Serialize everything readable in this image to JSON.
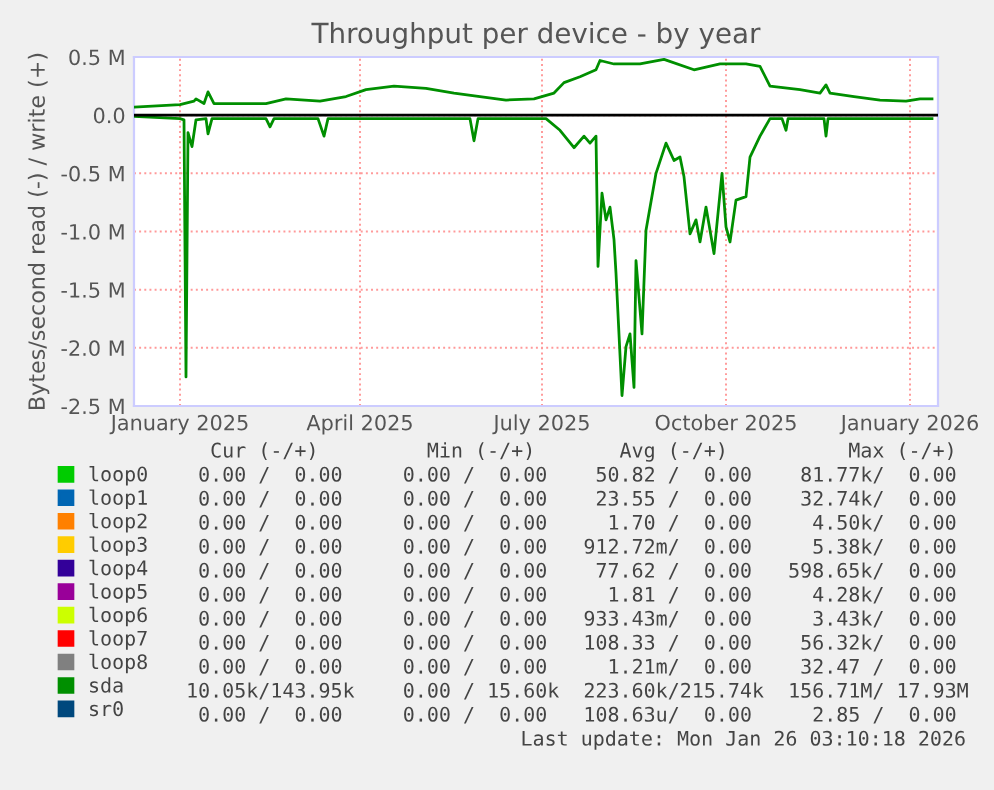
{
  "chart_data": {
    "type": "line",
    "title": "Throughput per device - by year",
    "ylabel": "Bytes/second read (-) / write (+)",
    "xlim": [
      "2024-12-23",
      "2026-01-29"
    ],
    "xticks": [
      {
        "value": "2025-01-15",
        "label": "January 2025"
      },
      {
        "value": "2025-04-15",
        "label": "April 2025"
      },
      {
        "value": "2025-07-15",
        "label": "July 2025"
      },
      {
        "value": "2025-10-15",
        "label": "October 2025"
      },
      {
        "value": "2026-01-15",
        "label": "January 2026"
      }
    ],
    "ylim": [
      -2.5,
      0.5
    ],
    "yticks": [
      {
        "value": 0.5,
        "label": "0.5 M"
      },
      {
        "value": 0.0,
        "label": "0.0"
      },
      {
        "value": -0.5,
        "label": "-0.5 M"
      },
      {
        "value": -1.0,
        "label": "-1.0 M"
      },
      {
        "value": -1.5,
        "label": "-1.5 M"
      },
      {
        "value": -2.0,
        "label": "-2.0 M"
      },
      {
        "value": -2.5,
        "label": "-2.5 M"
      }
    ],
    "grid": true,
    "legend": "bottom",
    "marker": "none",
    "line_style": "solid",
    "ref_lines": [
      {
        "axis": "y",
        "value": 0,
        "color": "#000000"
      }
    ],
    "series": [
      {
        "name": "loop0",
        "color": "#00cc00"
      },
      {
        "name": "loop1",
        "color": "#0066b3"
      },
      {
        "name": "loop2",
        "color": "#ff8000"
      },
      {
        "name": "loop3",
        "color": "#ffcc00"
      },
      {
        "name": "loop4",
        "color": "#330099"
      },
      {
        "name": "loop5",
        "color": "#990099"
      },
      {
        "name": "loop6",
        "color": "#ccff00"
      },
      {
        "name": "loop7",
        "color": "#ff0000"
      },
      {
        "name": "loop8",
        "color": "#808080"
      },
      {
        "name": "sda",
        "color": "#008f00",
        "x": [
          "2024-12-23",
          "2025-01-15",
          "2025-01-17",
          "2025-01-18",
          "2025-01-19",
          "2025-01-21",
          "2025-01-23",
          "2025-01-28",
          "2025-01-29",
          "2025-01-31",
          "2025-02-27",
          "2025-03-01",
          "2025-03-03",
          "2025-03-25",
          "2025-03-28",
          "2025-03-30",
          "2025-06-09",
          "2025-06-11",
          "2025-06-13",
          "2025-07-17",
          "2025-07-24",
          "2025-07-31",
          "2025-08-05",
          "2025-08-08",
          "2025-08-11",
          "2025-08-12",
          "2025-08-14",
          "2025-08-16",
          "2025-08-18",
          "2025-08-20",
          "2025-08-21",
          "2025-08-24",
          "2025-08-26",
          "2025-08-28",
          "2025-08-30",
          "2025-08-31",
          "2025-09-03",
          "2025-09-05",
          "2025-09-10",
          "2025-09-15",
          "2025-09-19",
          "2025-09-22",
          "2025-09-24",
          "2025-09-27",
          "2025-09-30",
          "2025-10-02",
          "2025-10-05",
          "2025-10-09",
          "2025-10-13",
          "2025-10-15",
          "2025-10-17",
          "2025-10-20",
          "2025-10-25",
          "2025-10-27",
          "2025-11-01",
          "2025-11-06",
          "2025-11-12",
          "2025-11-14",
          "2025-11-15",
          "2025-12-03",
          "2025-12-04",
          "2025-12-05",
          "2026-01-26"
        ],
        "values": [
          -0.01,
          -0.03,
          -0.04,
          -2.25,
          -0.15,
          -0.27,
          -0.04,
          -0.03,
          -0.16,
          -0.03,
          -0.03,
          -0.1,
          -0.03,
          -0.03,
          -0.18,
          -0.03,
          -0.03,
          -0.22,
          -0.03,
          -0.03,
          -0.13,
          -0.28,
          -0.18,
          -0.24,
          -0.18,
          -1.3,
          -0.67,
          -0.9,
          -0.79,
          -1.07,
          -1.36,
          -2.41,
          -1.99,
          -1.88,
          -2.34,
          -1.25,
          -1.88,
          -0.99,
          -0.5,
          -0.24,
          -0.39,
          -0.36,
          -0.53,
          -1.02,
          -0.9,
          -1.09,
          -0.79,
          -1.19,
          -0.5,
          -0.96,
          -1.09,
          -0.73,
          -0.7,
          -0.36,
          -0.18,
          -0.03,
          -0.03,
          -0.13,
          -0.03,
          -0.03,
          -0.18,
          -0.03,
          -0.03
        ]
      },
      {
        "name": "sr0",
        "color": "#00487d"
      },
      {
        "color": "#008f00",
        "x": [
          "2024-12-23",
          "2025-01-15",
          "2025-01-22",
          "2025-01-23",
          "2025-01-27",
          "2025-01-29",
          "2025-02-01",
          "2025-02-27",
          "2025-03-09",
          "2025-03-26",
          "2025-04-08",
          "2025-04-18",
          "2025-05-02",
          "2025-05-18",
          "2025-06-01",
          "2025-06-14",
          "2025-06-27",
          "2025-07-11",
          "2025-07-21",
          "2025-07-26",
          "2025-08-03",
          "2025-08-11",
          "2025-08-13",
          "2025-08-20",
          "2025-09-02",
          "2025-09-14",
          "2025-09-29",
          "2025-10-12",
          "2025-10-25",
          "2025-11-01",
          "2025-11-06",
          "2025-11-21",
          "2025-12-01",
          "2025-12-04",
          "2025-12-06",
          "2025-12-18",
          "2025-12-31",
          "2026-01-13",
          "2026-01-20",
          "2026-01-26"
        ],
        "values": [
          0.07,
          0.09,
          0.12,
          0.14,
          0.1,
          0.2,
          0.1,
          0.1,
          0.14,
          0.12,
          0.16,
          0.22,
          0.25,
          0.23,
          0.19,
          0.16,
          0.13,
          0.14,
          0.19,
          0.28,
          0.33,
          0.39,
          0.47,
          0.44,
          0.44,
          0.48,
          0.39,
          0.44,
          0.44,
          0.42,
          0.25,
          0.22,
          0.19,
          0.26,
          0.19,
          0.16,
          0.13,
          0.12,
          0.14,
          0.14
        ]
      }
    ],
    "annotations": [
      "   Cur (-/+)         Min (-/+)       Avg (-/+)          Max (-/+)",
      "  0.00 /  0.00     0.00 /  0.00    50.82 /  0.00    81.77k/  0.00",
      "  0.00 /  0.00     0.00 /  0.00    23.55 /  0.00    32.74k/  0.00",
      "  0.00 /  0.00     0.00 /  0.00     1.70 /  0.00     4.50k/  0.00",
      "  0.00 /  0.00     0.00 /  0.00   912.72m/  0.00     5.38k/  0.00",
      "  0.00 /  0.00     0.00 /  0.00    77.62 /  0.00   598.65k/  0.00",
      "  0.00 /  0.00     0.00 /  0.00     1.81 /  0.00     4.28k/  0.00",
      "  0.00 /  0.00     0.00 /  0.00   933.43m/  0.00     3.43k/  0.00",
      "  0.00 /  0.00     0.00 /  0.00   108.33 /  0.00    56.32k/  0.00",
      "  0.00 /  0.00     0.00 /  0.00     1.21m/  0.00    32.47 /  0.00",
      " 10.05k/143.95k    0.00 / 15.60k  223.60k/215.74k  156.71M/ 17.93M",
      "  0.00 /  0.00     0.00 /  0.00   108.63u/  0.00     2.85 /  0.00",
      "Last update: Mon Jan 26 03:10:18 2026"
    ]
  }
}
